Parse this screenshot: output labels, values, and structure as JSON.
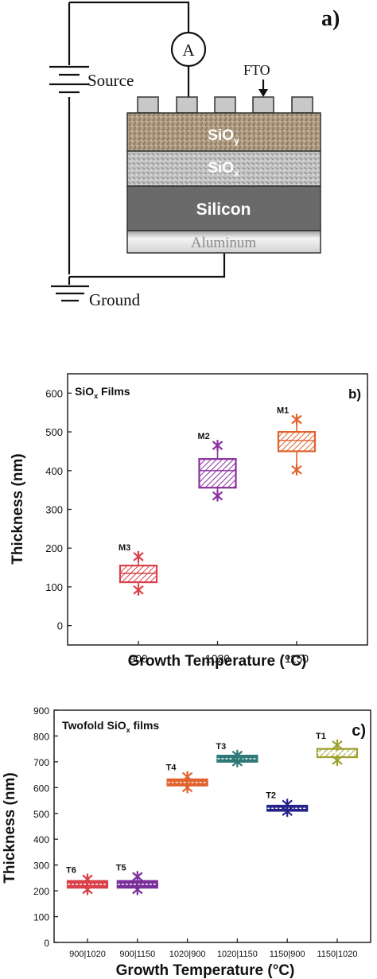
{
  "panel_a": {
    "label": "a)",
    "ammeter": "A",
    "source": "Source",
    "fto": "FTO",
    "ground": "Ground",
    "layers": [
      {
        "name": "SiO",
        "sub": "y",
        "color": "#b09c82"
      },
      {
        "name": "SiO",
        "sub": "x",
        "color": "#bfbfbf"
      },
      {
        "name": "Silicon",
        "sub": "",
        "color": "#6a6a6a"
      },
      {
        "name": "Aluminum",
        "sub": "",
        "color": "#e8e8e8"
      }
    ]
  },
  "chart_data": [
    {
      "type": "box",
      "panel_label": "b)",
      "title": "SiO",
      "title_sub": "x",
      "title_suffix": " Films",
      "xlabel": "Growth Temperature (°C)",
      "ylabel": "Thickness (nm)",
      "ylim": [
        -50,
        650
      ],
      "yticks": [
        0,
        100,
        200,
        300,
        400,
        500,
        600
      ],
      "categories": [
        "900",
        "1020",
        "1150"
      ],
      "series": [
        {
          "name": "M3",
          "color": "#d9404a",
          "q1": 112,
          "median": 135,
          "q3": 155,
          "min": 92,
          "max": 178
        },
        {
          "name": "M2",
          "color": "#8a2fa0",
          "q1": 356,
          "median": 400,
          "q3": 430,
          "min": 335,
          "max": 465
        },
        {
          "name": "M1",
          "color": "#e0622c",
          "q1": 450,
          "median": 478,
          "q3": 500,
          "min": 402,
          "max": 532
        }
      ]
    },
    {
      "type": "box",
      "panel_label": "c)",
      "title": "Twofold SiO",
      "title_sub": "x",
      "title_suffix": " films",
      "xlabel": "Growth Temperature (°C)",
      "ylabel": "Thickness (nm)",
      "ylim": [
        0,
        900
      ],
      "yticks": [
        0,
        100,
        200,
        300,
        400,
        500,
        600,
        700,
        800,
        900
      ],
      "categories": [
        "900|1020",
        "900|1150",
        "1020|900",
        "1020|1150",
        "1150|900",
        "1150|1020"
      ],
      "series": [
        {
          "name": "T6",
          "color": "#d9404a",
          "q1": 212,
          "median": 225,
          "q3": 238,
          "min": 205,
          "max": 245
        },
        {
          "name": "T5",
          "color": "#7a2f9a",
          "q1": 212,
          "median": 225,
          "q3": 238,
          "min": 205,
          "max": 255
        },
        {
          "name": "T4",
          "color": "#e0622c",
          "q1": 608,
          "median": 620,
          "q3": 632,
          "min": 600,
          "max": 642
        },
        {
          "name": "T3",
          "color": "#2f7a78",
          "q1": 700,
          "median": 712,
          "q3": 724,
          "min": 700,
          "max": 725
        },
        {
          "name": "T2",
          "color": "#23238a",
          "q1": 510,
          "median": 520,
          "q3": 530,
          "min": 508,
          "max": 535
        },
        {
          "name": "T1",
          "color": "#9ea12c",
          "q1": 718,
          "median": 735,
          "q3": 750,
          "min": 706,
          "max": 765
        }
      ]
    }
  ]
}
